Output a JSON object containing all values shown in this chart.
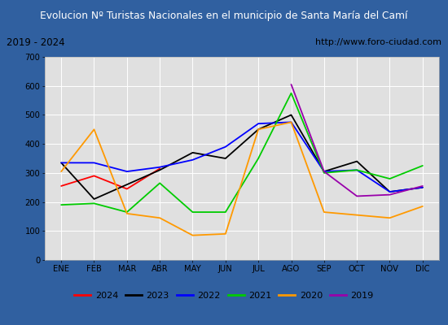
{
  "title": "Evolucion Nº Turistas Nacionales en el municipio de Santa María del Camí",
  "subtitle_left": "2019 - 2024",
  "subtitle_right": "http://www.foro-ciudad.com",
  "months": [
    "ENE",
    "FEB",
    "MAR",
    "ABR",
    "MAY",
    "JUN",
    "JUL",
    "AGO",
    "SEP",
    "OCT",
    "NOV",
    "DIC"
  ],
  "ylim": [
    0,
    700
  ],
  "yticks": [
    0,
    100,
    200,
    300,
    400,
    500,
    600,
    700
  ],
  "series": {
    "2024": {
      "color": "#ff0000",
      "values": [
        255,
        290,
        245,
        315,
        null,
        null,
        null,
        null,
        null,
        null,
        null,
        null
      ]
    },
    "2023": {
      "color": "#000000",
      "values": [
        335,
        210,
        260,
        310,
        370,
        350,
        450,
        500,
        305,
        340,
        235,
        250
      ]
    },
    "2022": {
      "color": "#0000ff",
      "values": [
        335,
        335,
        305,
        320,
        345,
        390,
        470,
        475,
        305,
        310,
        235,
        250
      ]
    },
    "2021": {
      "color": "#00cc00",
      "values": [
        190,
        195,
        165,
        265,
        165,
        165,
        350,
        575,
        300,
        310,
        280,
        325
      ]
    },
    "2020": {
      "color": "#ff9900",
      "values": [
        305,
        450,
        160,
        145,
        85,
        90,
        450,
        475,
        165,
        155,
        145,
        185
      ]
    },
    "2019": {
      "color": "#9900aa",
      "values": [
        null,
        null,
        null,
        null,
        null,
        null,
        null,
        605,
        305,
        220,
        225,
        255
      ]
    }
  },
  "title_bg": "#3060a0",
  "title_color": "#ffffff",
  "subtitle_bg": "#ffffff",
  "plot_bg": "#e0e0e0",
  "outer_bg": "#3060a0",
  "grid_color": "#ffffff",
  "legend_order": [
    "2024",
    "2023",
    "2022",
    "2021",
    "2020",
    "2019"
  ]
}
